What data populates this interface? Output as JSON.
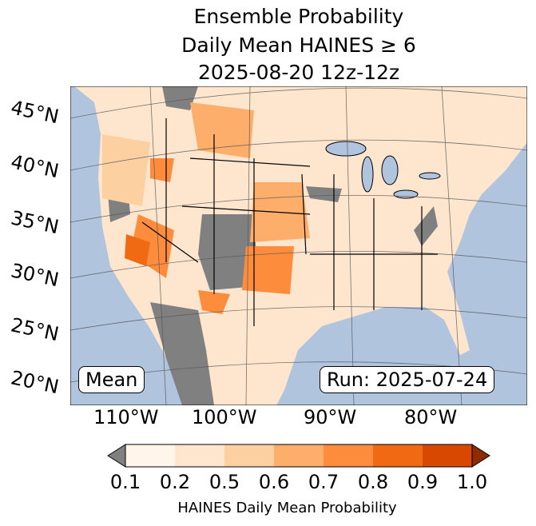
{
  "title": {
    "line1": "Ensemble Probability",
    "line2": "Daily Mean HAINES ≥ 6",
    "line3": "2025-08-20 12z-12z"
  },
  "lat_labels": [
    "45°N",
    "40°N",
    "35°N",
    "30°N",
    "25°N",
    "20°N"
  ],
  "lon_labels": [
    "110°W",
    "100°W",
    "90°W",
    "80°W"
  ],
  "stat_box": "Mean",
  "run_box": "Run: 2025-07-24",
  "colorbar": {
    "ticks": [
      "0.1",
      "0.2",
      "0.5",
      "0.6",
      "0.7",
      "0.8",
      "0.9",
      "1.0"
    ],
    "colors": [
      "#fff5eb",
      "#fee6ce",
      "#fdd0a2",
      "#fdae6b",
      "#fd8d3c",
      "#f16913",
      "#d94801"
    ],
    "under_color": "#808080",
    "over_color": "#8c2d04",
    "label": "HAINES Daily Mean Probability"
  },
  "colors": {
    "ocean": "#b0c4de",
    "land": "#fee6ce",
    "missing": "#808080"
  }
}
